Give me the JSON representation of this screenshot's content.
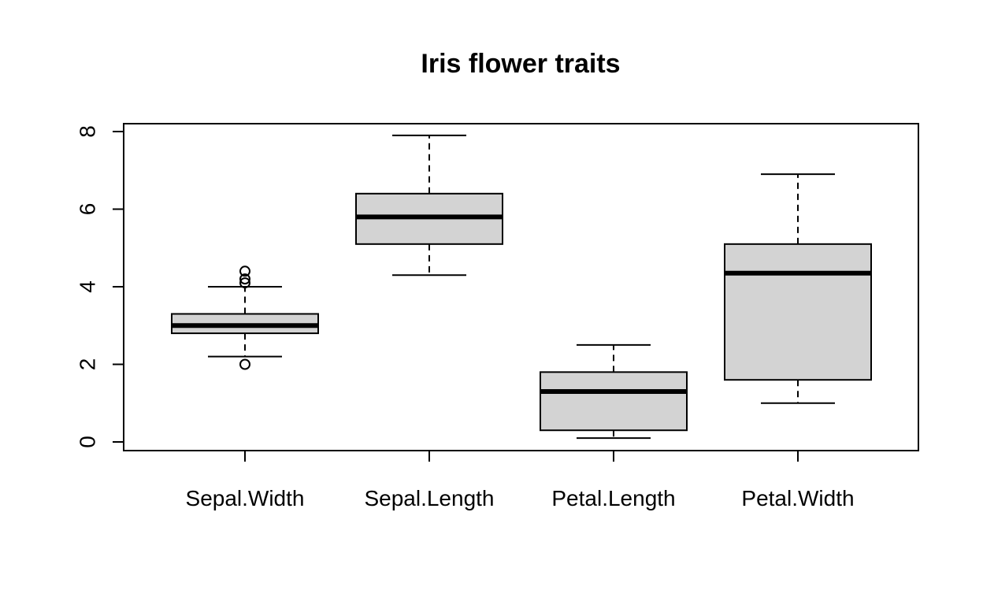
{
  "chart_data": {
    "type": "boxplot",
    "title": "Iris flower traits",
    "xlabel": "",
    "ylabel": "",
    "ylim": [
      -0.25,
      8.2
    ],
    "yticks": [
      0,
      2,
      4,
      6,
      8
    ],
    "ytick_labels": [
      "0",
      "2",
      "4",
      "6",
      "8"
    ],
    "categories": [
      "Sepal.Width",
      "Sepal.Length",
      "Petal.Length",
      "Petal.Width"
    ],
    "boxes": [
      {
        "name": "Sepal.Width",
        "whisker_low": 2.2,
        "q1": 2.8,
        "median": 3.0,
        "q3": 3.3,
        "whisker_high": 4.0,
        "outliers": [
          2.0,
          4.1,
          4.2,
          4.4
        ]
      },
      {
        "name": "Sepal.Length",
        "whisker_low": 4.3,
        "q1": 5.1,
        "median": 5.8,
        "q3": 6.4,
        "whisker_high": 7.9,
        "outliers": []
      },
      {
        "name": "Petal.Length",
        "whisker_low": 0.1,
        "q1": 0.3,
        "median": 1.3,
        "q3": 1.8,
        "whisker_high": 2.5,
        "outliers": []
      },
      {
        "name": "Petal.Width",
        "whisker_low": 1.0,
        "q1": 1.6,
        "median": 4.35,
        "q3": 5.1,
        "whisker_high": 6.9,
        "outliers": []
      }
    ],
    "grid": false,
    "colors": {
      "box_fill": "#d3d3d3",
      "stroke": "#000000",
      "background": "#ffffff"
    }
  }
}
